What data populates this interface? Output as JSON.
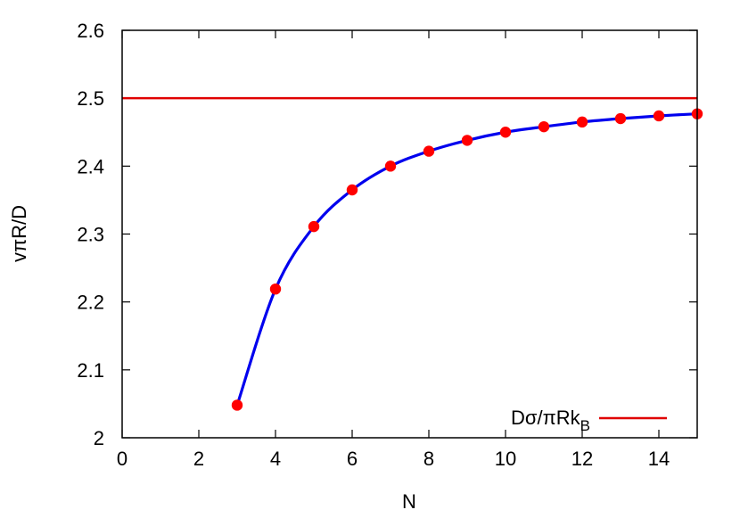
{
  "chart_data": {
    "type": "line",
    "xlabel": "N",
    "ylabel": "vπR/D",
    "xlim": [
      0,
      15
    ],
    "ylim": [
      2.0,
      2.6
    ],
    "x_ticks": [
      0,
      2,
      4,
      6,
      8,
      10,
      12,
      14
    ],
    "y_ticks": [
      2,
      2.1,
      2.2,
      2.3,
      2.4,
      2.5,
      2.6
    ],
    "x_tick_labels": [
      "0",
      "2",
      "4",
      "6",
      "8",
      "10",
      "12",
      "14"
    ],
    "y_tick_labels": [
      "2",
      "2.1",
      "2.2",
      "2.3",
      "2.4",
      "2.5",
      "2.6"
    ],
    "grid": false,
    "legend_position": "bottom-right",
    "series": [
      {
        "kind": "reference-line",
        "legend_label": "Dσ/πRk",
        "legend_subscript": "B",
        "color": "#e00000",
        "y": 2.5
      },
      {
        "kind": "curve",
        "color": "#0000ee",
        "x": [
          3,
          4,
          5,
          6,
          7,
          8,
          9,
          10,
          11,
          12,
          13,
          14,
          15
        ],
        "y": [
          2.048,
          2.219,
          2.311,
          2.365,
          2.4,
          2.422,
          2.438,
          2.45,
          2.458,
          2.465,
          2.47,
          2.474,
          2.477
        ]
      },
      {
        "kind": "points",
        "color": "#ff0000",
        "x": [
          3,
          4,
          5,
          6,
          7,
          8,
          9,
          10,
          11,
          12,
          13,
          14,
          15
        ],
        "y": [
          2.048,
          2.219,
          2.311,
          2.365,
          2.4,
          2.422,
          2.438,
          2.45,
          2.458,
          2.465,
          2.47,
          2.474,
          2.477
        ]
      }
    ]
  }
}
